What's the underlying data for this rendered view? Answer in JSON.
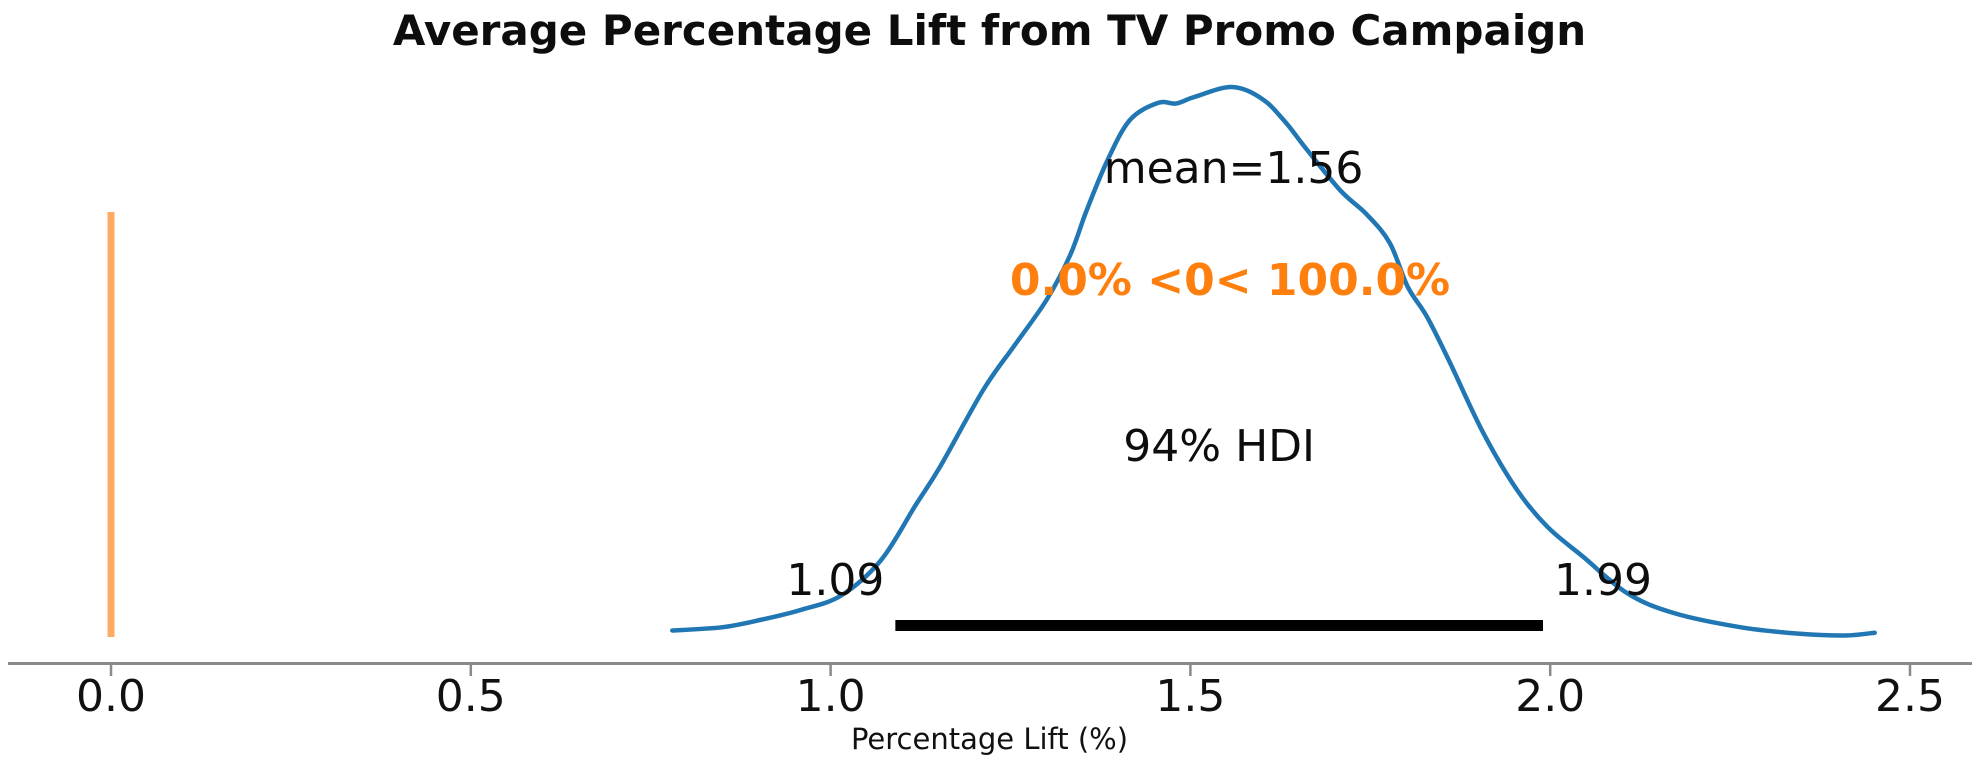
{
  "chart_data": {
    "type": "line",
    "subtype": "posterior-kde",
    "title": "Average Percentage Lift from TV Promo Campaign",
    "xlabel": "Percentage Lift (%)",
    "x_tick_values": [
      0,
      0.5,
      1,
      1.5,
      2,
      2.5
    ],
    "x_tick_labels": [
      "0.0",
      "0.5",
      "1.0",
      "1.5",
      "2.0",
      "2.5"
    ],
    "xlim": [
      -0.15,
      2.6
    ],
    "grid": false,
    "legend": "none",
    "annotations": {
      "mean_label": "mean=1.56",
      "mean_value": 1.56,
      "ref_label": "0.0% <0< 100.0%",
      "ref_value": 0.0,
      "hdi_label": "94% HDI",
      "hdi_probability": 0.94,
      "hdi_lower": 1.09,
      "hdi_upper": 1.99,
      "hdi_lower_label": "1.09",
      "hdi_upper_label": "1.99"
    },
    "colors": {
      "curve": "#2077b4",
      "ref_line": "#fdaa63",
      "ref_text": "#ff7f0e",
      "hdi_bar": "#000000",
      "axis_line": "#8a8a8a",
      "text": "#0d0d0d"
    },
    "curve_points_value_density": [
      [
        0.78,
        0.01
      ],
      [
        0.85,
        0.016
      ],
      [
        0.905,
        0.03
      ],
      [
        0.96,
        0.048
      ],
      [
        1.015,
        0.074
      ],
      [
        1.07,
        0.138
      ],
      [
        1.118,
        0.238
      ],
      [
        1.152,
        0.308
      ],
      [
        1.212,
        0.448
      ],
      [
        1.256,
        0.53
      ],
      [
        1.3,
        0.612
      ],
      [
        1.333,
        0.694
      ],
      [
        1.356,
        0.776
      ],
      [
        1.385,
        0.867
      ],
      [
        1.416,
        0.94
      ],
      [
        1.455,
        0.971
      ],
      [
        1.48,
        0.97
      ],
      [
        1.506,
        0.982
      ],
      [
        1.558,
        1.0
      ],
      [
        1.6,
        0.978
      ],
      [
        1.632,
        0.936
      ],
      [
        1.66,
        0.889
      ],
      [
        1.708,
        0.812
      ],
      [
        1.745,
        0.768
      ],
      [
        1.777,
        0.716
      ],
      [
        1.802,
        0.636
      ],
      [
        1.829,
        0.581
      ],
      [
        1.861,
        0.497
      ],
      [
        1.907,
        0.37
      ],
      [
        1.954,
        0.266
      ],
      [
        1.996,
        0.199
      ],
      [
        2.046,
        0.144
      ],
      [
        2.107,
        0.078
      ],
      [
        2.171,
        0.042
      ],
      [
        2.264,
        0.016
      ],
      [
        2.347,
        0.004
      ],
      [
        2.41,
        0.001
      ],
      [
        2.451,
        0.006
      ]
    ]
  }
}
